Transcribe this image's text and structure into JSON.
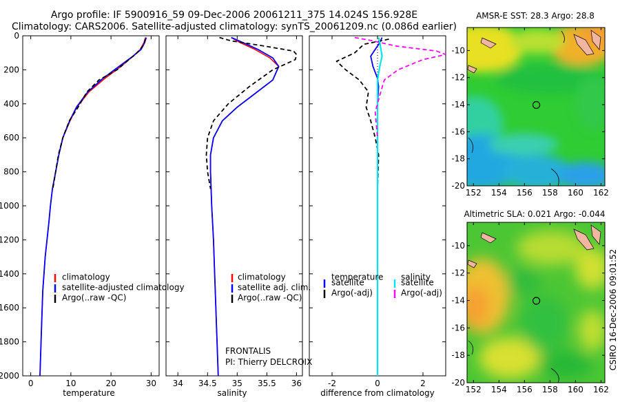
{
  "header": {
    "title_line1": "Argo profile: IF 5900916_59 09-Dec-2006 20061211_375 14.024S 156.928E",
    "title_line2": "Climatology: CARS2006. Satellite-adjusted climatology: synTS_20061209.nc (0.086d earlier)"
  },
  "side_stamp": "CSIRO 16-Dec-2006 09:01:52",
  "float_info": {
    "project": "FRONTALIS",
    "pi": "PI: Thierry DELCROIX"
  },
  "colors": {
    "climatology": "#ff0000",
    "satellite": "#0000ff",
    "argo": "#000000",
    "sal_satellite": "#00e5ee",
    "sal_argo": "#ff00ff"
  },
  "chart_data": [
    {
      "type": "line",
      "xlabel": "temperature",
      "ylim": [
        2000,
        0
      ],
      "xlim": [
        -2,
        32
      ],
      "xticks": [
        "0",
        "10",
        "20",
        "30"
      ],
      "yticks": [
        "0",
        "200",
        "400",
        "600",
        "800",
        "1000",
        "1200",
        "1400",
        "1600",
        "1800",
        "2000"
      ],
      "legend": [
        "climatology",
        "satellite-adjusted climatology",
        "Argo(..raw -QC)"
      ],
      "legend_placement": "lower-right",
      "series": [
        {
          "name": "climatology",
          "x": [
            28.6,
            28.2,
            27.3,
            25.5,
            22.5,
            18.5,
            14.5,
            11.5,
            9.8,
            8.0,
            7.0,
            6.2,
            5.4,
            4.9,
            4.5,
            3.6,
            3.0,
            2.7,
            2.5,
            2.3
          ],
          "y": [
            10,
            40,
            80,
            120,
            180,
            250,
            330,
            420,
            500,
            600,
            700,
            800,
            900,
            1000,
            1100,
            1300,
            1500,
            1700,
            1850,
            2000
          ]
        },
        {
          "name": "satellite-adjusted climatology",
          "x": [
            28.8,
            28.4,
            27.5,
            25.5,
            22.0,
            18.0,
            14.2,
            11.4,
            9.7,
            8.0,
            7.0,
            6.2,
            5.4,
            4.9,
            4.5,
            3.6,
            3.0,
            2.7,
            2.5,
            2.3
          ],
          "y": [
            10,
            40,
            80,
            120,
            180,
            250,
            330,
            420,
            500,
            600,
            700,
            800,
            900,
            1000,
            1100,
            1300,
            1500,
            1700,
            1850,
            2000
          ]
        },
        {
          "name": "Argo(..raw -QC)",
          "x": [
            28.5,
            28.3,
            26.5,
            24.0,
            21.5,
            17.0,
            14.0,
            11.8,
            9.6,
            8.0,
            6.9,
            5.5
          ],
          "y": [
            20,
            50,
            100,
            150,
            200,
            260,
            330,
            420,
            500,
            600,
            700,
            900
          ]
        }
      ]
    },
    {
      "type": "line",
      "xlabel": "salinity",
      "ylim": [
        2000,
        0
      ],
      "xlim": [
        33.8,
        36.1
      ],
      "xticks": [
        "34",
        "34.5",
        "35",
        "35.5",
        "36"
      ],
      "legend": [
        "climatology",
        "satellite adj. clim.",
        "Argo(..raw -QC)"
      ],
      "legend_placement": "lower-right",
      "series": [
        {
          "name": "climatology",
          "x": [
            34.9,
            35.05,
            35.3,
            35.55,
            35.7,
            35.6,
            35.3,
            35.0,
            34.75,
            34.6,
            34.55,
            34.55,
            34.57,
            34.6,
            34.62,
            34.65,
            34.68
          ],
          "y": [
            10,
            40,
            80,
            130,
            180,
            260,
            340,
            420,
            500,
            600,
            700,
            800,
            1000,
            1200,
            1400,
            1700,
            2000
          ]
        },
        {
          "name": "satellite adj. clim.",
          "x": [
            34.9,
            35.1,
            35.35,
            35.6,
            35.7,
            35.6,
            35.3,
            35.0,
            34.75,
            34.6,
            34.55,
            34.55,
            34.57,
            34.6,
            34.62,
            34.65,
            34.68
          ],
          "y": [
            10,
            40,
            80,
            130,
            180,
            260,
            340,
            420,
            500,
            600,
            700,
            800,
            1000,
            1200,
            1400,
            1700,
            2000
          ]
        },
        {
          "name": "Argo(..raw -QC)",
          "x": [
            34.7,
            34.9,
            35.45,
            35.95,
            36.0,
            35.98,
            35.6,
            35.2,
            34.85,
            34.6,
            34.5,
            34.48,
            34.5,
            34.55
          ],
          "y": [
            10,
            30,
            60,
            90,
            110,
            140,
            200,
            300,
            400,
            500,
            600,
            700,
            800,
            900
          ]
        }
      ]
    },
    {
      "type": "line",
      "xlabel": "difference from climatology",
      "ylim": [
        2000,
        0
      ],
      "xlim": [
        -3,
        3
      ],
      "xticks": [
        "-2",
        "0",
        "2"
      ],
      "legend": [
        "temperature",
        "satellite",
        "Argo(-adj)",
        "salinity",
        "satellite",
        "Argo(-adj)"
      ],
      "legend_placement": "lower-center",
      "series": [
        {
          "name": "temperature satellite",
          "x": [
            0.2,
            0.1,
            -0.1,
            -0.3,
            -0.2,
            0.0,
            0.05,
            0.0,
            0.0,
            0.0,
            0.0,
            0.0,
            0.0
          ],
          "y": [
            10,
            40,
            80,
            120,
            180,
            250,
            300,
            400,
            500,
            600,
            800,
            1200,
            2000
          ]
        },
        {
          "name": "temperature Argo(-adj)",
          "x": [
            0.5,
            -0.6,
            -1.0,
            -1.8,
            -1.4,
            -0.8,
            -0.4,
            -0.5,
            -0.3,
            -0.1,
            0.05,
            0.0
          ],
          "y": [
            20,
            50,
            100,
            150,
            200,
            260,
            330,
            420,
            500,
            600,
            700,
            900
          ]
        },
        {
          "name": "salinity satellite",
          "x": [
            0.05,
            0.1,
            0.15,
            0.2,
            0.1,
            0.0,
            0.0,
            0.0,
            0.0,
            0.0,
            0.0
          ],
          "y": [
            10,
            40,
            80,
            120,
            180,
            260,
            400,
            600,
            800,
            1200,
            2000
          ]
        },
        {
          "name": "salinity Argo(-adj)",
          "x": [
            -1.0,
            -0.2,
            0.8,
            2.6,
            3.0,
            2.0,
            0.9,
            0.3,
            0.1,
            -0.1,
            0.0
          ],
          "y": [
            10,
            30,
            60,
            90,
            110,
            140,
            200,
            260,
            350,
            450,
            600
          ]
        }
      ]
    },
    {
      "type": "heatmap",
      "title": "AMSR-E SST: 28.3 Argo: 28.8",
      "xlim": [
        151.5,
        162.3
      ],
      "ylim": [
        -20,
        -8.3
      ],
      "xticks": [
        "152",
        "154",
        "156",
        "158",
        "160",
        "162"
      ],
      "yticks": [
        "-10",
        "-12",
        "-14",
        "-16",
        "-18",
        "-20"
      ],
      "argo_position": {
        "lon": 156.928,
        "lat": -14.024
      }
    },
    {
      "type": "heatmap",
      "title": "Altimetric SLA: 0.021 Argo: -0.044",
      "xlim": [
        151.5,
        162.3
      ],
      "ylim": [
        -20,
        -8.3
      ],
      "xticks": [
        "152",
        "154",
        "156",
        "158",
        "160",
        "162"
      ],
      "yticks": [
        "-10",
        "-12",
        "-14",
        "-16",
        "-18",
        "-20"
      ],
      "argo_position": {
        "lon": 156.928,
        "lat": -14.024
      }
    }
  ]
}
